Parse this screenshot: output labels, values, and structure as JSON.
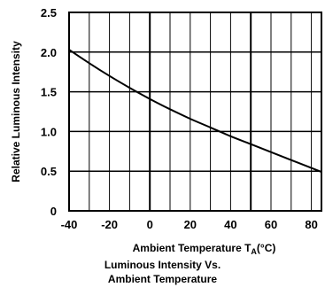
{
  "chart_data": {
    "type": "line",
    "xlabel_main": "Ambient Temperature T",
    "xlabel_sub": "A",
    "xlabel_unit": "(°C)",
    "ylabel": "Relative Luminous Intensity",
    "caption_line1": "Luminous Intensity Vs.",
    "caption_line2": "Ambient Temperature",
    "xlim": [
      -40,
      85
    ],
    "ylim": [
      0,
      2.5
    ],
    "x_ticks": [
      -40,
      -20,
      0,
      20,
      40,
      60,
      80
    ],
    "y_ticks": [
      0,
      0.5,
      1.0,
      1.5,
      2.0,
      2.5
    ],
    "x_tick_labels": [
      "-40",
      "-20",
      "0",
      "20",
      "40",
      "60",
      "80"
    ],
    "y_tick_labels": [
      "0",
      "0.5",
      "1.0",
      "1.5",
      "2.0",
      "2.5"
    ],
    "grid": true,
    "series": [
      {
        "x": [
          -40,
          -30,
          -20,
          -10,
          0,
          10,
          20,
          30,
          40,
          50,
          60,
          70,
          80,
          85
        ],
        "y": [
          2.03,
          1.86,
          1.7,
          1.55,
          1.41,
          1.28,
          1.16,
          1.05,
          0.94,
          0.84,
          0.74,
          0.64,
          0.54,
          0.49
        ]
      }
    ]
  }
}
